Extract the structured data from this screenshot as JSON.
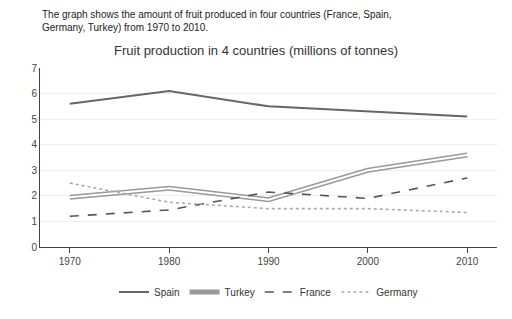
{
  "chart_data": {
    "type": "line",
    "title": "Fruit production in 4 countries (millions of tonnes)",
    "subtitle": "The graph shows the amount of fruit produced in four countries (France, Spain, Germany, Turkey) from 1970 to 2010.",
    "x": [
      1970,
      1980,
      1990,
      2000,
      2010
    ],
    "series": [
      {
        "name": "Spain",
        "color": "#666666",
        "line_style": "solid",
        "values": [
          5.6,
          6.1,
          5.5,
          5.3,
          5.1
        ]
      },
      {
        "name": "Turkey",
        "color": "#999999",
        "line_style": "double",
        "values": [
          1.95,
          2.3,
          1.85,
          3.0,
          3.6
        ]
      },
      {
        "name": "France",
        "color": "#555555",
        "line_style": "dashed",
        "values": [
          1.2,
          1.45,
          2.15,
          1.9,
          2.7
        ]
      },
      {
        "name": "Germany",
        "color": "#aaaaaa",
        "line_style": "dotted",
        "values": [
          2.5,
          1.75,
          1.5,
          1.5,
          1.35
        ]
      }
    ],
    "xlim": [
      1967,
      2013
    ],
    "xticks": [
      1970,
      1980,
      1990,
      2000,
      2010
    ],
    "ylim": [
      0,
      7
    ],
    "yticks": [
      0,
      1,
      2,
      3,
      4,
      5,
      6,
      7
    ],
    "grid": true,
    "legend": "bottom"
  }
}
